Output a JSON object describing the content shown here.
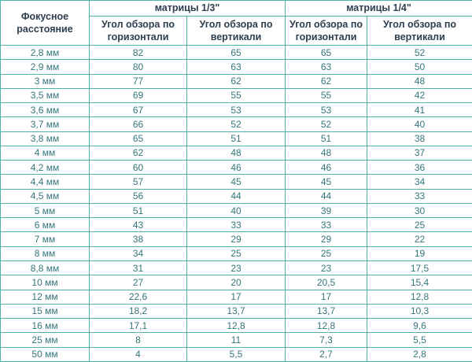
{
  "colors": {
    "border": "#4fb3a8",
    "header-text": "#2d3e4f",
    "cell-text": "#35767b",
    "bg": "#ffffff"
  },
  "table": {
    "col1_header": "Фокусное расстояние",
    "group_headers": [
      "матрицы 1/3\"",
      "матрицы 1/4\""
    ],
    "sub_headers": [
      "Угол обзора по горизонтали",
      "Угол обзора по вертикали",
      "Угол обзора по горизонтали",
      "Угол обзора по вертикали"
    ],
    "rows": [
      {
        "focal": "2,8 мм",
        "values": [
          "82",
          "65",
          "65",
          "52"
        ]
      },
      {
        "focal": "2,9 мм",
        "values": [
          "80",
          "63",
          "63",
          "50"
        ]
      },
      {
        "focal": "3 мм",
        "values": [
          "77",
          "62",
          "62",
          "48"
        ]
      },
      {
        "focal": "3,5 мм",
        "values": [
          "69",
          "55",
          "55",
          "42"
        ]
      },
      {
        "focal": "3,6 мм",
        "values": [
          "67",
          "53",
          "53",
          "41"
        ]
      },
      {
        "focal": "3,7 мм",
        "values": [
          "66",
          "52",
          "52",
          "40"
        ]
      },
      {
        "focal": "3,8 мм",
        "values": [
          "65",
          "51",
          "51",
          "38"
        ]
      },
      {
        "focal": "4 мм",
        "values": [
          "62",
          "48",
          "48",
          "37"
        ]
      },
      {
        "focal": "4,2 мм",
        "values": [
          "60",
          "46",
          "46",
          "36"
        ]
      },
      {
        "focal": "4,4 мм",
        "values": [
          "57",
          "45",
          "45",
          "34"
        ]
      },
      {
        "focal": "4,5 мм",
        "values": [
          "56",
          "44",
          "44",
          "33"
        ]
      },
      {
        "focal": "5 мм",
        "values": [
          "51",
          "40",
          "39",
          "30"
        ]
      },
      {
        "focal": "6 мм",
        "values": [
          "43",
          "33",
          "33",
          "25"
        ]
      },
      {
        "focal": "7 мм",
        "values": [
          "38",
          "29",
          "29",
          "22"
        ]
      },
      {
        "focal": "8 мм",
        "values": [
          "34",
          "25",
          "25",
          "19"
        ]
      },
      {
        "focal": "8,8 мм",
        "values": [
          "31",
          "23",
          "23",
          "17,5"
        ]
      },
      {
        "focal": "10 мм",
        "values": [
          "27",
          "20",
          "20,5",
          "15,4"
        ]
      },
      {
        "focal": "12 мм",
        "values": [
          "22,6",
          "17",
          "17",
          "12,8"
        ]
      },
      {
        "focal": "15 мм",
        "values": [
          "18,2",
          "13,7",
          "13,7",
          "10,3"
        ]
      },
      {
        "focal": "16 мм",
        "values": [
          "17,1",
          "12,8",
          "12,8",
          "9,6"
        ]
      },
      {
        "focal": "25 мм",
        "values": [
          "8",
          "11",
          "7,3",
          "5,5"
        ]
      },
      {
        "focal": "50 мм",
        "values": [
          "4",
          "5,5",
          "2,7",
          "2,8"
        ]
      }
    ]
  },
  "chart_data": {
    "type": "table",
    "title": "",
    "columns": [
      "Фокусное расстояние",
      "матрицы 1/3\" — Угол обзора по горизонтали",
      "матрицы 1/3\" — Угол обзора по вертикали",
      "матрицы 1/4\" — Угол обзора по горизонтали",
      "матрицы 1/4\" — Угол обзора по вертикали"
    ],
    "rows": [
      [
        "2,8 мм",
        82,
        65,
        65,
        52
      ],
      [
        "2,9 мм",
        80,
        63,
        63,
        50
      ],
      [
        "3 мм",
        77,
        62,
        62,
        48
      ],
      [
        "3,5 мм",
        69,
        55,
        55,
        42
      ],
      [
        "3,6 мм",
        67,
        53,
        53,
        41
      ],
      [
        "3,7 мм",
        66,
        52,
        52,
        40
      ],
      [
        "3,8 мм",
        65,
        51,
        51,
        38
      ],
      [
        "4 мм",
        62,
        48,
        48,
        37
      ],
      [
        "4,2 мм",
        60,
        46,
        46,
        36
      ],
      [
        "4,4 мм",
        57,
        45,
        45,
        34
      ],
      [
        "4,5 мм",
        56,
        44,
        44,
        33
      ],
      [
        "5 мм",
        51,
        40,
        39,
        30
      ],
      [
        "6 мм",
        43,
        33,
        33,
        25
      ],
      [
        "7 мм",
        38,
        29,
        29,
        22
      ],
      [
        "8 мм",
        34,
        25,
        25,
        19
      ],
      [
        "8,8 мм",
        31,
        23,
        23,
        17.5
      ],
      [
        "10 мм",
        27,
        20,
        20.5,
        15.4
      ],
      [
        "12 мм",
        22.6,
        17,
        17,
        12.8
      ],
      [
        "15 мм",
        18.2,
        13.7,
        13.7,
        10.3
      ],
      [
        "16 мм",
        17.1,
        12.8,
        12.8,
        9.6
      ],
      [
        "25 мм",
        8,
        11,
        7.3,
        5.5
      ],
      [
        "50 мм",
        4,
        5.5,
        2.7,
        2.8
      ]
    ]
  }
}
